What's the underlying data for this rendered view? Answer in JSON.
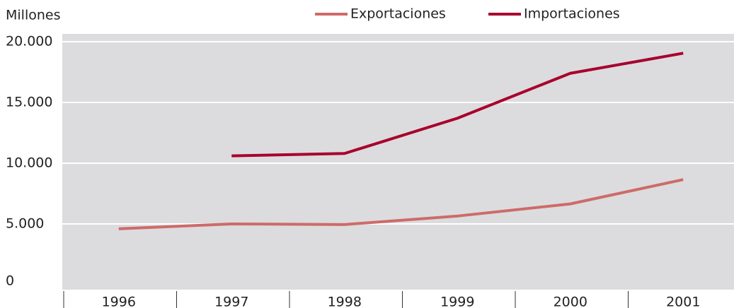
{
  "chart_data": {
    "type": "line",
    "y_label": "Millones",
    "categories": [
      "1996",
      "1997",
      "1998",
      "1999",
      "2000",
      "2001"
    ],
    "series": [
      {
        "name": "Exportaciones",
        "color": "#cd6b69",
        "values": [
          4600,
          5000,
          4950,
          5650,
          6650,
          8650
        ]
      },
      {
        "name": "Importaciones",
        "color": "#a8002e",
        "values": [
          null,
          10600,
          10800,
          13700,
          17400,
          19050
        ]
      }
    ],
    "ylim": [
      0,
      20000
    ],
    "yticks": [
      0,
      {
        "value": 5000,
        "label": "5.000"
      },
      {
        "value": 10000,
        "label": "10.000"
      },
      {
        "value": 15000,
        "label": "15.000"
      },
      {
        "value": 20000,
        "label": "20.000"
      }
    ],
    "grid": true,
    "legend": "top"
  }
}
